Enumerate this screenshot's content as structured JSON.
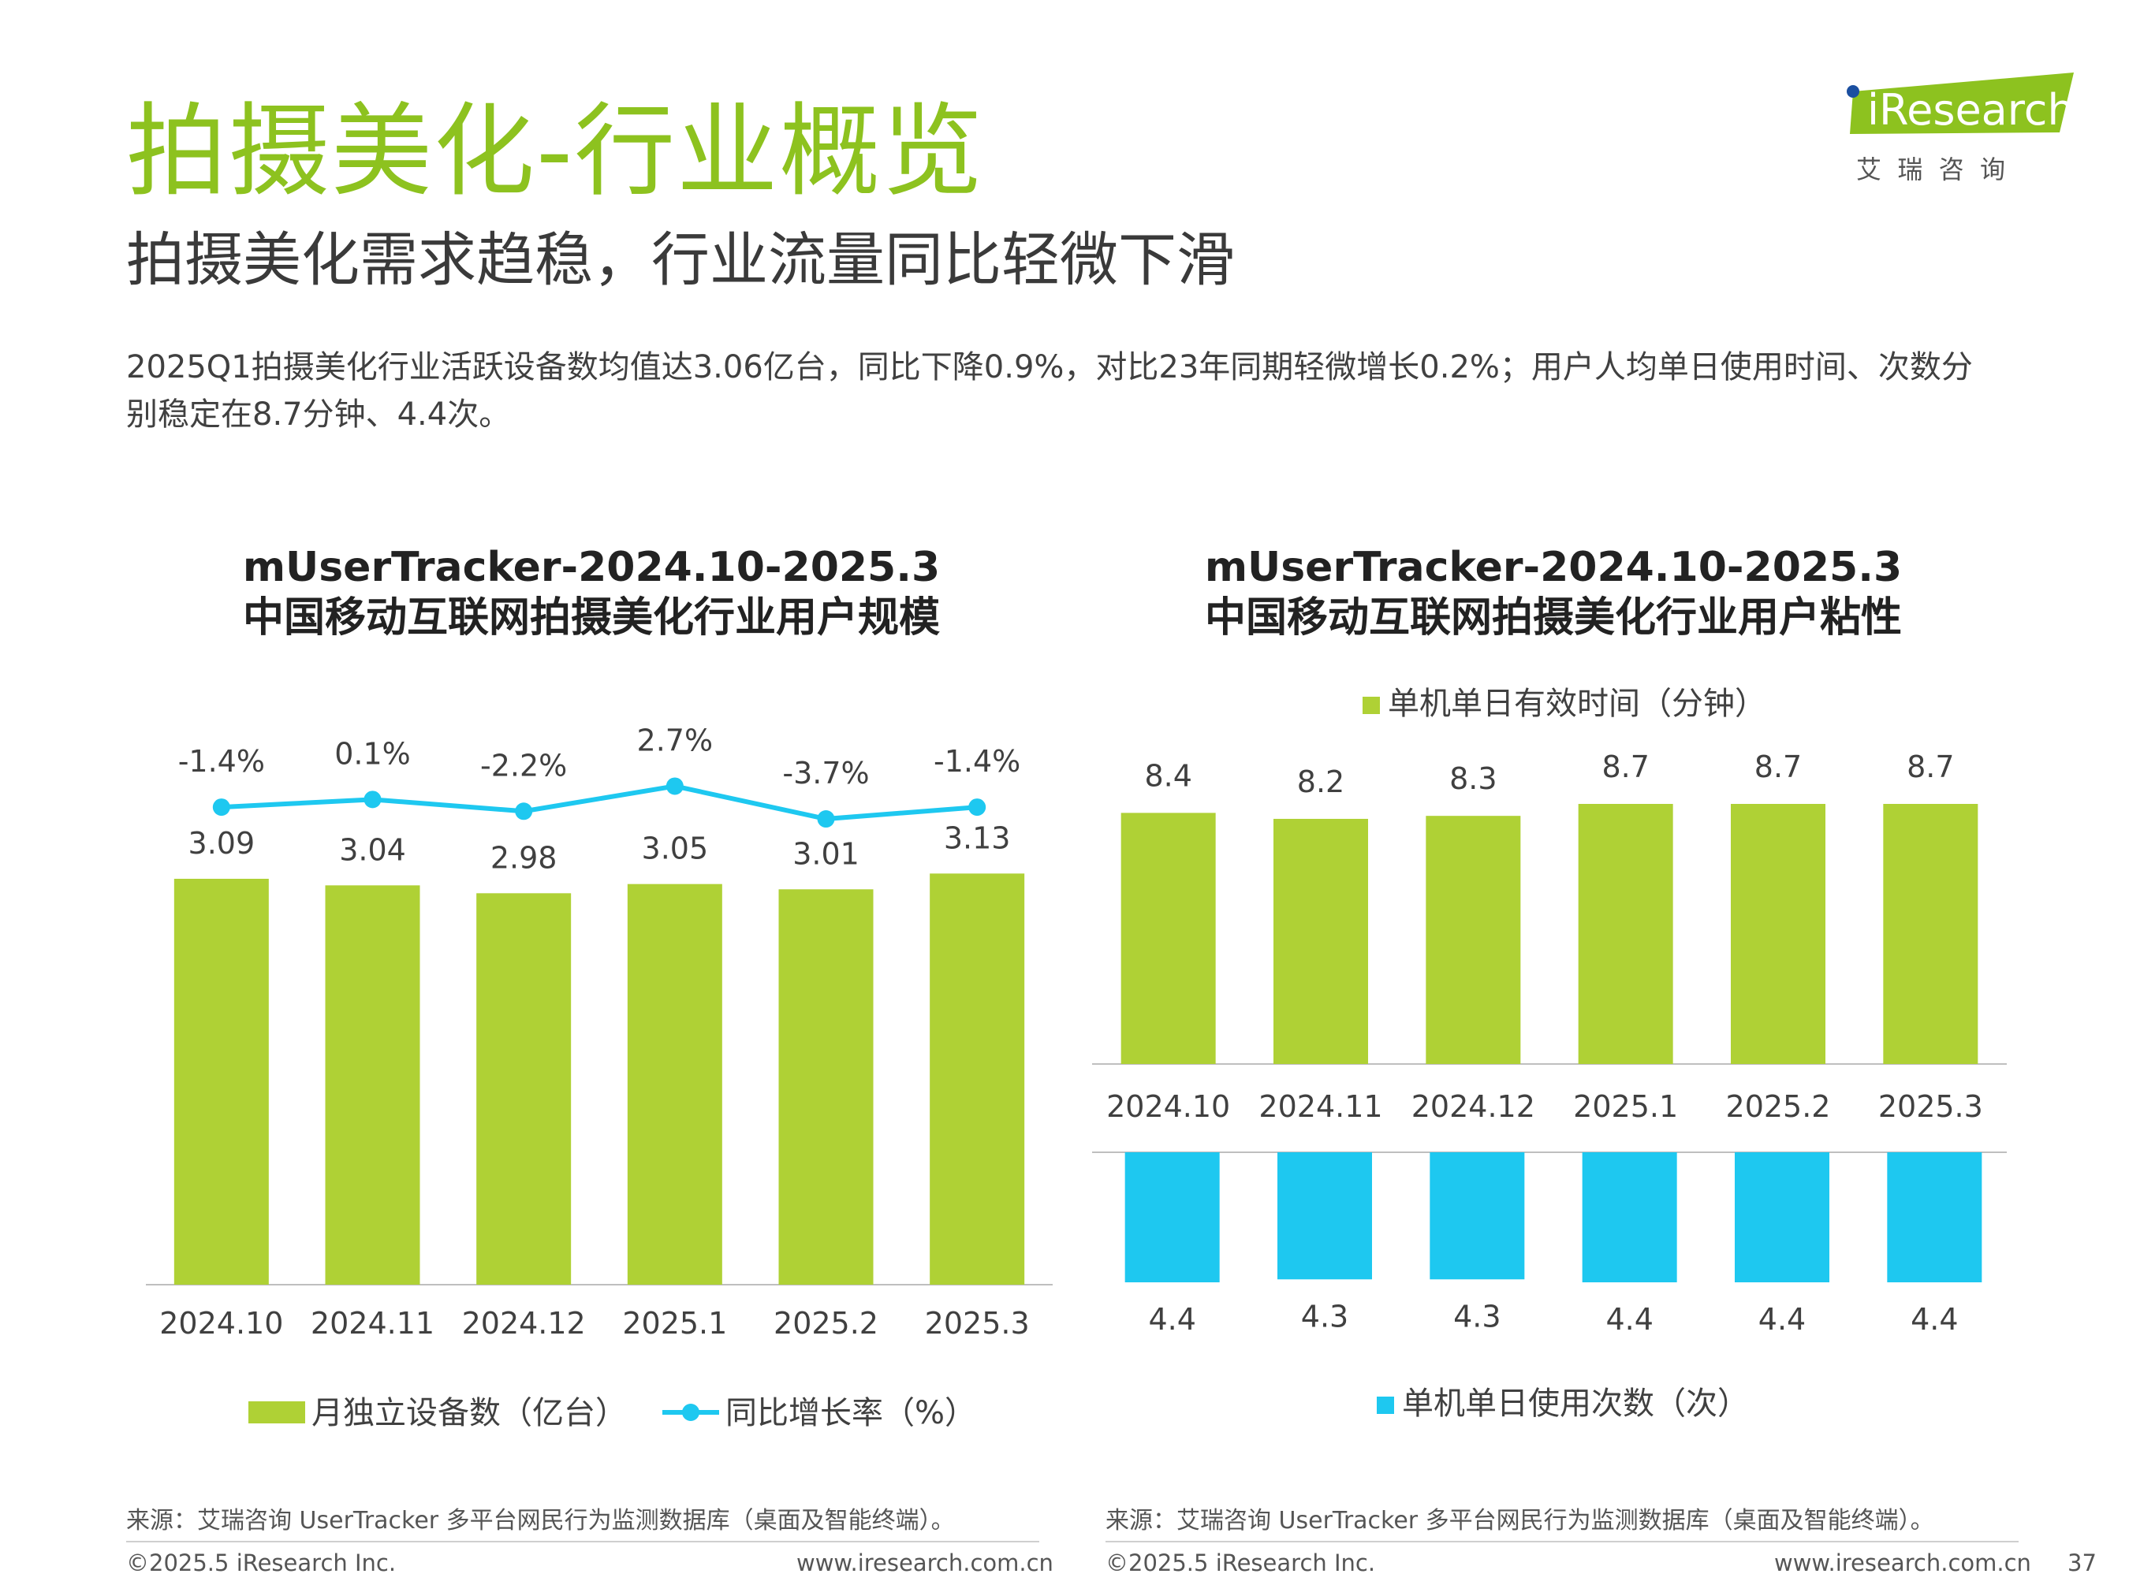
{
  "header": {
    "title": "拍摄美化-行业概览",
    "subtitle": "拍摄美化需求趋稳，行业流量同比轻微下滑",
    "description_line1": "2025Q1拍摄美化行业活跃设备数均值达3.06亿台，同比下降0.9%，对比23年同期轻微增长0.2%；用户人均单日使用时间、次数分",
    "description_line2": "别稳定在8.7分钟、4.4次。"
  },
  "logo": {
    "brand": "iResearch",
    "chinese": "艾  瑞  咨  询",
    "brand_color": "#8dc21f"
  },
  "colors": {
    "green": "#afd135",
    "blue": "#1ec8f0",
    "title_green": "#8dc21f"
  },
  "chart_data": [
    {
      "type": "bar",
      "title_line1": "mUserTracker-2024.10-2025.3",
      "title_line2": "中国移动互联网拍摄美化行业用户规模",
      "categories": [
        "2024.10",
        "2024.11",
        "2024.12",
        "2025.1",
        "2025.2",
        "2025.3"
      ],
      "series": [
        {
          "name": "月独立设备数（亿台）",
          "type": "bar",
          "values": [
            3.09,
            3.04,
            2.98,
            3.05,
            3.01,
            3.13
          ],
          "labels": [
            "3.09",
            "3.04",
            "2.98",
            "3.05",
            "3.01",
            "3.13"
          ]
        },
        {
          "name": "同比增长率（%）",
          "type": "line",
          "values": [
            -1.4,
            0.1,
            -2.2,
            2.7,
            -3.7,
            -1.4
          ],
          "labels": [
            "-1.4%",
            "0.1%",
            "-2.2%",
            "2.7%",
            "-3.7%",
            "-1.4%"
          ]
        }
      ],
      "legend": "bottom"
    },
    {
      "type": "bar",
      "title_line1": "mUserTracker-2024.10-2025.3",
      "title_line2": "中国移动互联网拍摄美化行业用户粘性",
      "categories": [
        "2024.10",
        "2024.11",
        "2024.12",
        "2025.1",
        "2025.2",
        "2025.3"
      ],
      "series": [
        {
          "name": "单机单日有效时间（分钟）",
          "values": [
            8.4,
            8.2,
            8.3,
            8.7,
            8.7,
            8.7
          ],
          "labels": [
            "8.4",
            "8.2",
            "8.3",
            "8.7",
            "8.7",
            "8.7"
          ]
        },
        {
          "name": "单机单日使用次数（次）",
          "values": [
            4.4,
            4.3,
            4.3,
            4.4,
            4.4,
            4.4
          ],
          "labels": [
            "4.4",
            "4.3",
            "4.3",
            "4.4",
            "4.4",
            "4.4"
          ]
        }
      ],
      "legend": "top and bottom"
    }
  ],
  "footer": {
    "source": "来源：艾瑞咨询 UserTracker 多平台网民行为监测数据库（桌面及智能终端）。",
    "copyright": "©2025.5 iResearch Inc.",
    "website": "www.iresearch.com.cn",
    "page_number": "37"
  }
}
